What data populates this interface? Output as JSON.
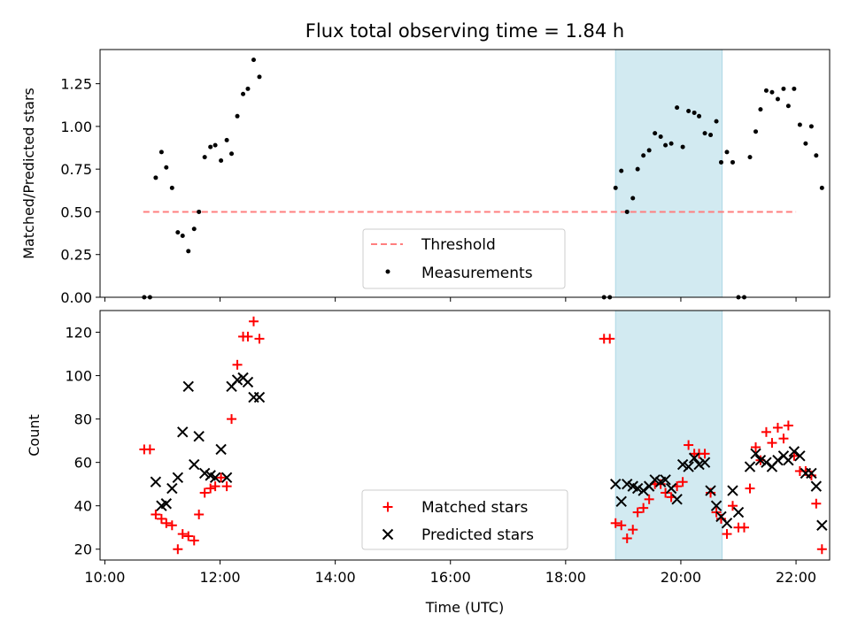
{
  "chart_data": [
    {
      "type": "scatter",
      "title": "Flux total observing time = 1.84 h",
      "ylabel": "Matched/Predicted stars",
      "xlabel": "",
      "ylim": [
        0,
        1.45
      ],
      "xlim": [
        "09:55",
        "22:35"
      ],
      "y_ticks": [
        0,
        0.25,
        0.5,
        0.75,
        1.0,
        1.25
      ],
      "y_tick_labels": [
        "0.00",
        "0.25",
        "0.50",
        "0.75",
        "1.00",
        "1.25"
      ],
      "shaded_interval": {
        "start": "18:52",
        "end": "20:43",
        "color": "#add8e6"
      },
      "threshold": {
        "name": "Threshold",
        "y": 0.5,
        "x_start": "10:40",
        "x_end": "22:00",
        "color": "#ff7f7f"
      },
      "legend": {
        "placement": "lower-center",
        "entries": [
          "Threshold",
          "Measurements"
        ]
      },
      "series": [
        {
          "name": "Measurements",
          "color": "#000000",
          "points": [
            [
              "10:41",
              0.0
            ],
            [
              "10:47",
              0.0
            ],
            [
              "10:53",
              0.7
            ],
            [
              "10:59",
              0.85
            ],
            [
              "11:04",
              0.76
            ],
            [
              "11:10",
              0.64
            ],
            [
              "11:16",
              0.38
            ],
            [
              "11:21",
              0.36
            ],
            [
              "11:27",
              0.27
            ],
            [
              "11:33",
              0.4
            ],
            [
              "11:38",
              0.5
            ],
            [
              "11:44",
              0.82
            ],
            [
              "11:50",
              0.88
            ],
            [
              "11:55",
              0.89
            ],
            [
              "12:01",
              0.8
            ],
            [
              "12:07",
              0.92
            ],
            [
              "12:12",
              0.84
            ],
            [
              "12:18",
              1.06
            ],
            [
              "12:24",
              1.19
            ],
            [
              "12:29",
              1.22
            ],
            [
              "12:35",
              1.39
            ],
            [
              "12:41",
              1.29
            ],
            [
              "18:40",
              0.0
            ],
            [
              "18:46",
              0.0
            ],
            [
              "18:52",
              0.64
            ],
            [
              "18:58",
              0.74
            ],
            [
              "19:04",
              0.5
            ],
            [
              "19:10",
              0.58
            ],
            [
              "19:15",
              0.75
            ],
            [
              "19:21",
              0.83
            ],
            [
              "19:27",
              0.86
            ],
            [
              "19:33",
              0.96
            ],
            [
              "19:39",
              0.94
            ],
            [
              "19:44",
              0.89
            ],
            [
              "19:50",
              0.9
            ],
            [
              "19:56",
              1.11
            ],
            [
              "20:02",
              0.88
            ],
            [
              "20:08",
              1.09
            ],
            [
              "20:14",
              1.08
            ],
            [
              "20:19",
              1.06
            ],
            [
              "20:25",
              0.96
            ],
            [
              "20:31",
              0.95
            ],
            [
              "20:37",
              1.03
            ],
            [
              "20:42",
              0.79
            ],
            [
              "20:48",
              0.85
            ],
            [
              "20:54",
              0.79
            ],
            [
              "21:00",
              0.0
            ],
            [
              "21:06",
              0.0
            ],
            [
              "21:12",
              0.82
            ],
            [
              "21:18",
              0.97
            ],
            [
              "21:23",
              1.1
            ],
            [
              "21:29",
              1.21
            ],
            [
              "21:35",
              1.2
            ],
            [
              "21:41",
              1.16
            ],
            [
              "21:47",
              1.22
            ],
            [
              "21:52",
              1.12
            ],
            [
              "21:58",
              1.22
            ],
            [
              "22:04",
              1.01
            ],
            [
              "22:10",
              0.9
            ],
            [
              "22:16",
              1.0
            ],
            [
              "22:21",
              0.83
            ],
            [
              "22:27",
              0.64
            ]
          ]
        }
      ]
    },
    {
      "type": "scatter",
      "title": "",
      "ylabel": "Count",
      "xlabel": "Time (UTC)",
      "ylim": [
        15,
        130
      ],
      "xlim": [
        "09:55",
        "22:35"
      ],
      "y_ticks": [
        20,
        40,
        60,
        80,
        100,
        120
      ],
      "y_tick_labels": [
        "20",
        "40",
        "60",
        "80",
        "100",
        "120"
      ],
      "x_ticks": [
        "10:00",
        "12:00",
        "14:00",
        "16:00",
        "18:00",
        "20:00",
        "22:00"
      ],
      "x_tick_labels": [
        "10:00",
        "12:00",
        "14:00",
        "16:00",
        "18:00",
        "20:00",
        "22:00"
      ],
      "shaded_interval": {
        "start": "18:52",
        "end": "20:43",
        "color": "#add8e6"
      },
      "legend": {
        "placement": "lower-center",
        "entries": [
          "Matched stars",
          "Predicted stars"
        ]
      },
      "series": [
        {
          "name": "Matched stars",
          "marker": "plus",
          "color": "#ff0000",
          "points": [
            [
              "10:41",
              66
            ],
            [
              "10:47",
              66
            ],
            [
              "10:53",
              36
            ],
            [
              "10:59",
              34
            ],
            [
              "11:04",
              32
            ],
            [
              "11:10",
              31
            ],
            [
              "11:16",
              20
            ],
            [
              "11:21",
              27
            ],
            [
              "11:27",
              26
            ],
            [
              "11:33",
              24
            ],
            [
              "11:38",
              36
            ],
            [
              "11:44",
              46
            ],
            [
              "11:50",
              48
            ],
            [
              "11:55",
              49
            ],
            [
              "12:01",
              53
            ],
            [
              "12:07",
              49
            ],
            [
              "12:12",
              80
            ],
            [
              "12:18",
              105
            ],
            [
              "12:24",
              118
            ],
            [
              "12:29",
              118
            ],
            [
              "12:35",
              125
            ],
            [
              "12:41",
              117
            ],
            [
              "18:40",
              117
            ],
            [
              "18:46",
              117
            ],
            [
              "18:52",
              32
            ],
            [
              "18:58",
              31
            ],
            [
              "19:04",
              25
            ],
            [
              "19:10",
              29
            ],
            [
              "19:15",
              37
            ],
            [
              "19:21",
              39
            ],
            [
              "19:27",
              43
            ],
            [
              "19:33",
              50
            ],
            [
              "19:39",
              50
            ],
            [
              "19:44",
              46
            ],
            [
              "19:50",
              44
            ],
            [
              "19:56",
              49
            ],
            [
              "20:02",
              51
            ],
            [
              "20:08",
              68
            ],
            [
              "20:14",
              64
            ],
            [
              "20:19",
              64
            ],
            [
              "20:25",
              64
            ],
            [
              "20:31",
              46
            ],
            [
              "20:37",
              37
            ],
            [
              "20:42",
              34
            ],
            [
              "20:48",
              27
            ],
            [
              "20:54",
              40
            ],
            [
              "21:00",
              30
            ],
            [
              "21:06",
              30
            ],
            [
              "21:12",
              48
            ],
            [
              "21:18",
              67
            ],
            [
              "21:23",
              61
            ],
            [
              "21:29",
              74
            ],
            [
              "21:35",
              69
            ],
            [
              "21:41",
              76
            ],
            [
              "21:47",
              71
            ],
            [
              "21:52",
              77
            ],
            [
              "21:58",
              63
            ],
            [
              "22:04",
              56
            ],
            [
              "22:10",
              56
            ],
            [
              "22:16",
              54
            ],
            [
              "22:21",
              41
            ],
            [
              "22:27",
              20
            ]
          ]
        },
        {
          "name": "Predicted stars",
          "marker": "x",
          "color": "#000000",
          "points": [
            [
              "10:53",
              51
            ],
            [
              "10:59",
              40
            ],
            [
              "11:04",
              41
            ],
            [
              "11:10",
              48
            ],
            [
              "11:16",
              53
            ],
            [
              "11:21",
              74
            ],
            [
              "11:27",
              95
            ],
            [
              "11:33",
              59
            ],
            [
              "11:38",
              72
            ],
            [
              "11:44",
              55
            ],
            [
              "11:50",
              54
            ],
            [
              "11:55",
              53
            ],
            [
              "12:01",
              66
            ],
            [
              "12:07",
              53
            ],
            [
              "12:12",
              95
            ],
            [
              "12:18",
              98
            ],
            [
              "12:24",
              99
            ],
            [
              "12:29",
              97
            ],
            [
              "12:35",
              90
            ],
            [
              "12:41",
              90
            ],
            [
              "18:52",
              50
            ],
            [
              "18:58",
              42
            ],
            [
              "19:04",
              50
            ],
            [
              "19:10",
              49
            ],
            [
              "19:15",
              48
            ],
            [
              "19:21",
              47
            ],
            [
              "19:27",
              49
            ],
            [
              "19:33",
              52
            ],
            [
              "19:39",
              51
            ],
            [
              "19:44",
              52
            ],
            [
              "19:50",
              48
            ],
            [
              "19:56",
              43
            ],
            [
              "20:02",
              59
            ],
            [
              "20:08",
              58
            ],
            [
              "20:14",
              62
            ],
            [
              "20:19",
              59
            ],
            [
              "20:25",
              60
            ],
            [
              "20:31",
              47
            ],
            [
              "20:37",
              40
            ],
            [
              "20:42",
              35
            ],
            [
              "20:48",
              32
            ],
            [
              "20:54",
              47
            ],
            [
              "21:00",
              37
            ],
            [
              "21:12",
              58
            ],
            [
              "21:18",
              64
            ],
            [
              "21:23",
              61
            ],
            [
              "21:29",
              60
            ],
            [
              "21:35",
              58
            ],
            [
              "21:41",
              61
            ],
            [
              "21:47",
              63
            ],
            [
              "21:52",
              61
            ],
            [
              "21:58",
              65
            ],
            [
              "22:04",
              63
            ],
            [
              "22:10",
              55
            ],
            [
              "22:16",
              55
            ],
            [
              "22:21",
              49
            ],
            [
              "22:27",
              31
            ]
          ]
        }
      ]
    }
  ]
}
